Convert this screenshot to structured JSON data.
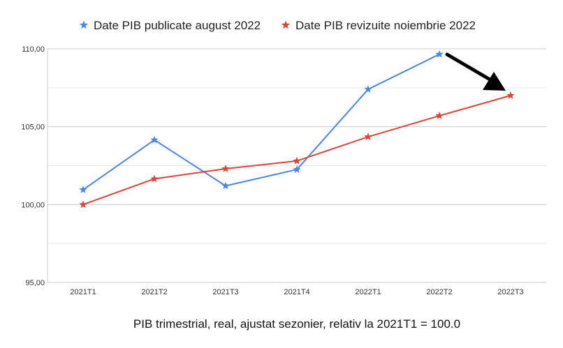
{
  "chart_data": {
    "type": "line",
    "categories": [
      "2021T1",
      "2021T2",
      "2021T3",
      "2021T4",
      "2022T1",
      "2022T2",
      "2022T3"
    ],
    "series": [
      {
        "name": "Date PIB publicate august 2022",
        "color": "#4a86e8",
        "values": [
          100.95,
          104.15,
          101.2,
          102.25,
          107.4,
          109.65,
          null
        ]
      },
      {
        "name": "Date PIB revizuite noiembrie 2022",
        "color": "#db4437",
        "values": [
          100.0,
          101.65,
          102.3,
          102.8,
          104.35,
          105.7,
          107.0
        ]
      }
    ],
    "yticks": [
      "95,00",
      "100,00",
      "105,00",
      "110,00"
    ],
    "ylim": [
      95,
      110
    ],
    "grid": true,
    "legend_position": "top",
    "xlabel": "PIB trimestrial, real, ajustat sezonier, relativ la 2021T1 = 100.0",
    "annotation": "black arrow pointing to 2022T3 revised value"
  }
}
